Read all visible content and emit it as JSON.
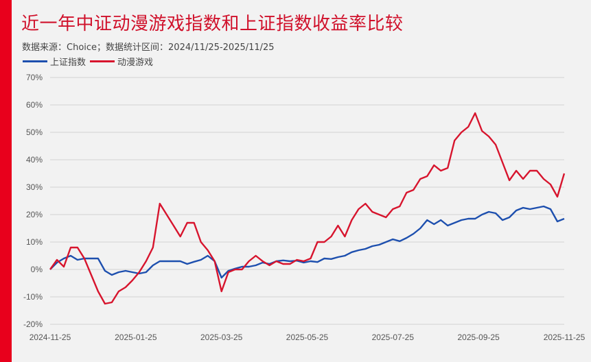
{
  "title": "近一年中证动漫游戏指数和上证指数收益率比较",
  "source": "数据来源：Choice；数据统计区间：2024/11/25-2025/11/25",
  "colors": {
    "accent_bar": "#e8001c",
    "shanghai": "#1d4fae",
    "anime": "#d7142d"
  },
  "chart_data": {
    "type": "line",
    "title": "近一年中证动漫游戏指数和上证指数收益率比较",
    "xlabel": "",
    "ylabel": "",
    "x_start": "2024-11-25",
    "x_end": "2025-11-25",
    "sample_interval_days": 4.87,
    "x_ticks": [
      "2024-11-25",
      "2025-01-25",
      "2025-03-25",
      "2025-05-25",
      "2025-07-25",
      "2025-09-25",
      "2025-11-25"
    ],
    "y_ticks": [
      "70%",
      "60%",
      "50%",
      "40%",
      "30%",
      "20%",
      "10%",
      "0%",
      "-10%",
      "-20%"
    ],
    "ylim": [
      -20,
      70
    ],
    "grid": true,
    "legend_position": "top-left",
    "series": [
      {
        "name": "上证指数",
        "color": "#1d4fae",
        "values": [
          0,
          2.5,
          4,
          5,
          3.5,
          4,
          4,
          4,
          -0.5,
          -2,
          -1,
          -0.5,
          -1,
          -1.5,
          -1,
          1.5,
          3,
          3,
          3,
          3,
          2,
          2.8,
          3.5,
          5,
          3,
          -3,
          -0.5,
          0.3,
          1,
          1,
          1.5,
          2.5,
          2,
          3,
          3.3,
          3,
          3.2,
          2.5,
          3,
          2.7,
          4,
          3.8,
          4.5,
          5,
          6.3,
          7,
          7.5,
          8.5,
          9,
          10,
          11,
          10.3,
          11.5,
          13,
          15,
          18,
          16.5,
          18,
          16,
          17,
          18,
          18.5,
          18.5,
          20,
          21,
          20.5,
          18,
          19,
          21.5,
          22.5,
          22,
          22.5,
          23,
          22,
          17.5,
          18.5
        ]
      },
      {
        "name": "动漫游戏",
        "color": "#d7142d",
        "values": [
          0,
          3.5,
          1,
          8,
          8,
          4,
          -2,
          -8,
          -12.5,
          -12,
          -8,
          -6.5,
          -4,
          -1,
          3,
          8,
          24,
          20,
          16,
          12,
          17,
          17,
          10,
          7,
          3,
          -8,
          -1,
          0,
          0,
          3,
          5,
          3,
          1.5,
          3,
          2,
          2,
          3.5,
          3,
          4,
          10,
          10,
          12,
          16,
          12,
          18,
          22,
          24,
          21,
          20,
          19,
          22,
          23,
          28,
          29,
          33,
          34,
          38,
          36,
          37,
          47,
          50,
          52,
          57,
          50.5,
          48.5,
          45.5,
          39,
          32.5,
          36,
          33,
          36,
          36,
          33,
          31,
          26.5,
          35
        ]
      }
    ]
  }
}
